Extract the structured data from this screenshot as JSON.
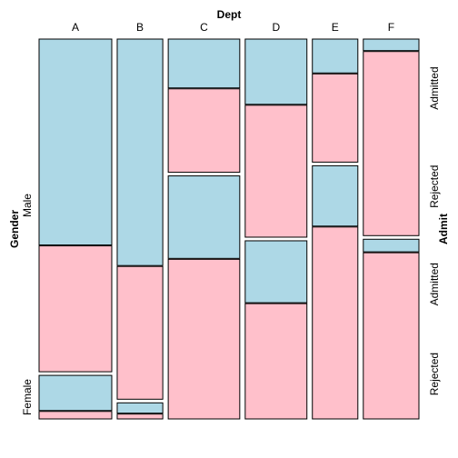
{
  "chart_data": {
    "type": "mosaic",
    "title": "",
    "x_variable": "Dept",
    "y_variable": "Gender",
    "right_variable": "Admit",
    "departments": [
      "A",
      "B",
      "C",
      "D",
      "E",
      "F"
    ],
    "genders": [
      "Male",
      "Female"
    ],
    "admit_levels": [
      "Admitted",
      "Rejected"
    ],
    "colors": {
      "Admitted": "#add8e6",
      "Rejected": "#ffc0cb"
    },
    "counts": {
      "A": {
        "Male": {
          "Admitted": 512,
          "Rejected": 313
        },
        "Female": {
          "Admitted": 89,
          "Rejected": 19
        }
      },
      "B": {
        "Male": {
          "Admitted": 353,
          "Rejected": 207
        },
        "Female": {
          "Admitted": 17,
          "Rejected": 8
        }
      },
      "C": {
        "Male": {
          "Admitted": 120,
          "Rejected": 205
        },
        "Female": {
          "Admitted": 202,
          "Rejected": 391
        }
      },
      "D": {
        "Male": {
          "Admitted": 138,
          "Rejected": 279
        },
        "Female": {
          "Admitted": 131,
          "Rejected": 244
        }
      },
      "E": {
        "Male": {
          "Admitted": 53,
          "Rejected": 138
        },
        "Female": {
          "Admitted": 94,
          "Rejected": 299
        }
      },
      "F": {
        "Male": {
          "Admitted": 22,
          "Rejected": 351
        },
        "Female": {
          "Admitted": 24,
          "Rejected": 317
        }
      }
    }
  }
}
